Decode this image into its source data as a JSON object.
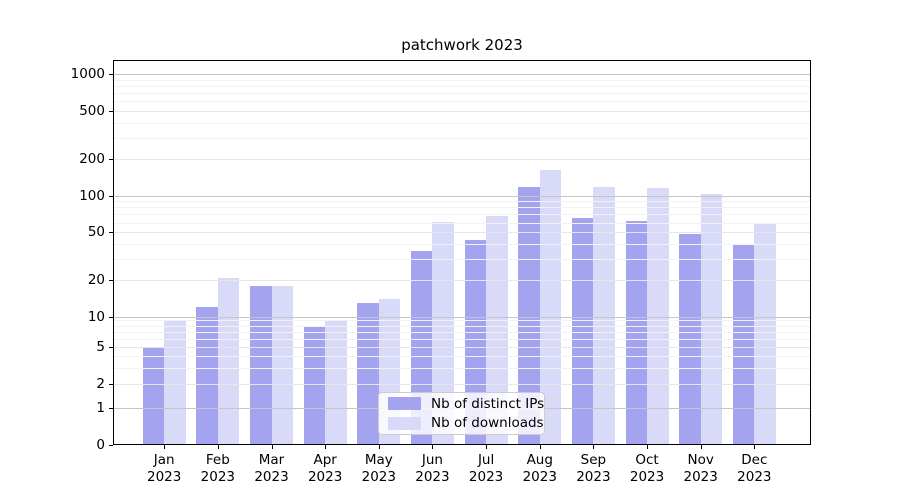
{
  "chart_data": {
    "type": "bar",
    "title": "patchwork 2023",
    "categories": [
      "Jan 2023",
      "Feb 2023",
      "Mar 2023",
      "Apr 2023",
      "May 2023",
      "Jun 2023",
      "Jul 2023",
      "Aug 2023",
      "Sep 2023",
      "Oct 2023",
      "Nov 2023",
      "Dec 2023"
    ],
    "x_tick_months": [
      "Jan",
      "Feb",
      "Mar",
      "Apr",
      "May",
      "Jun",
      "Jul",
      "Aug",
      "Sep",
      "Oct",
      "Nov",
      "Dec"
    ],
    "x_tick_year": "2023",
    "series": [
      {
        "name": "Nb of distinct IPs",
        "color": "#a3a3ef",
        "values": [
          5,
          12,
          18,
          8,
          13,
          35,
          43,
          118,
          66,
          62,
          48,
          39
        ]
      },
      {
        "name": "Nb of downloads",
        "color": "#d9d9f8",
        "values": [
          9,
          21,
          18,
          9,
          14,
          61,
          68,
          162,
          118,
          115,
          104,
          58
        ]
      }
    ],
    "yscale": "symlog",
    "y_ticks": [
      0,
      1,
      2,
      5,
      10,
      20,
      50,
      100,
      200,
      500,
      1000
    ],
    "ylim": [
      0,
      1300
    ],
    "grid": true,
    "legend_position": "lower center",
    "colors": {
      "major_grid": "#c6c6c6",
      "labeled_grid": "#e7e7e7",
      "minor_grid": "#f2f2f2",
      "axis": "#000000",
      "background": "#ffffff"
    }
  }
}
